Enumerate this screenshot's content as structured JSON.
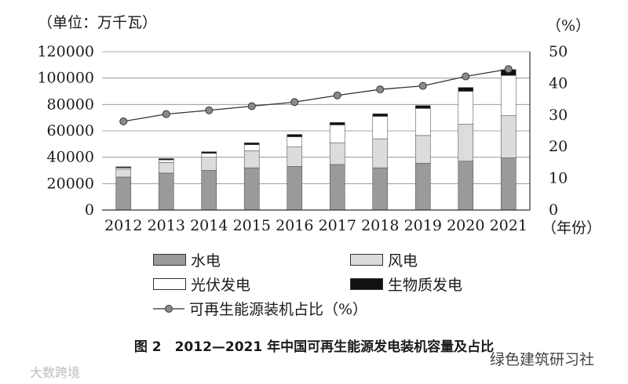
{
  "chart_data": {
    "type": "bar",
    "stacked": true,
    "left_unit": "（单位：万千瓦）",
    "right_unit": "（%）",
    "x_unit": "（年份）",
    "categories": [
      "2012",
      "2013",
      "2014",
      "2015",
      "2016",
      "2017",
      "2018",
      "2019",
      "2020",
      "2021"
    ],
    "y_ticks": [
      "0",
      "20000",
      "40000",
      "60000",
      "80000",
      "100000",
      "120000"
    ],
    "y2_ticks": [
      "0",
      "10",
      "20",
      "30",
      "40",
      "50"
    ],
    "ylim": [
      0,
      120000
    ],
    "y2lim": [
      0,
      50
    ],
    "series": [
      {
        "name": "水电",
        "color": "#9a9a9a",
        "values": [
          25000,
          28000,
          30000,
          32000,
          33000,
          34500,
          32000,
          35500,
          37000,
          39500
        ]
      },
      {
        "name": "风电",
        "color": "#dcdcdc",
        "values": [
          6000,
          8000,
          10000,
          13000,
          15000,
          16500,
          22000,
          21000,
          28000,
          32000
        ]
      },
      {
        "name": "光伏发电",
        "color": "#ffffff",
        "values": [
          1000,
          2000,
          3000,
          4500,
          7500,
          13500,
          17000,
          20500,
          25000,
          30500
        ]
      },
      {
        "name": "生物质发电",
        "color": "#111111",
        "values": [
          800,
          1000,
          1200,
          1500,
          1800,
          1900,
          2000,
          2200,
          2900,
          4500
        ]
      }
    ],
    "line_series": {
      "name": "可再生能源装机占比（%）",
      "values": [
        28,
        30.3,
        31.5,
        32.8,
        34.1,
        36.2,
        38.1,
        39.2,
        42.2,
        44.5
      ]
    },
    "caption": "图 2　2012—2021 年中国可再生能源发电装机容量及占比",
    "watermark_left": "大数跨境",
    "watermark_right": "绿色建筑研习社"
  }
}
